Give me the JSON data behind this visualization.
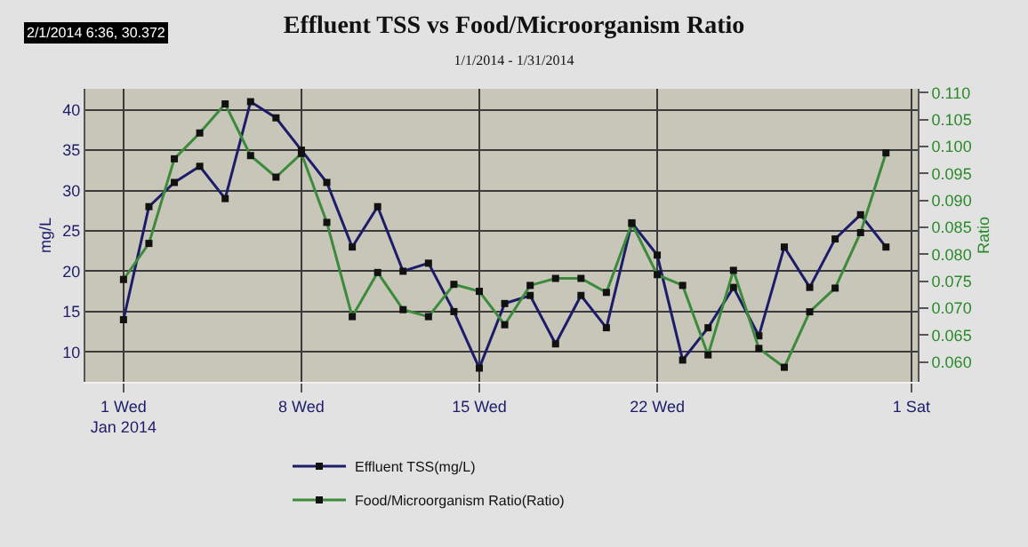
{
  "chart_data": {
    "type": "line",
    "title": "Effluent TSS vs Food/Microorganism Ratio",
    "subtitle": "1/1/2014 - 1/31/2014",
    "ylabel": "mg/L",
    "y2label": "Ratio",
    "annotations": [
      "2/1/2014 6:36, 30.372"
    ],
    "x": [
      "2014-01-01",
      "2014-01-02",
      "2014-01-03",
      "2014-01-04",
      "2014-01-05",
      "2014-01-06",
      "2014-01-07",
      "2014-01-08",
      "2014-01-09",
      "2014-01-10",
      "2014-01-11",
      "2014-01-12",
      "2014-01-13",
      "2014-01-14",
      "2014-01-15",
      "2014-01-16",
      "2014-01-17",
      "2014-01-18",
      "2014-01-19",
      "2014-01-20",
      "2014-01-21",
      "2014-01-22",
      "2014-01-23",
      "2014-01-24",
      "2014-01-25",
      "2014-01-26",
      "2014-01-27",
      "2014-01-28",
      "2014-01-29",
      "2014-01-30",
      "2014-01-31"
    ],
    "series": [
      {
        "name": "Effluent TSS(mg/L)",
        "color": "#1c1c6b",
        "values": [
          14,
          28,
          31,
          33,
          29,
          41,
          39,
          35,
          31,
          23,
          28,
          20,
          21,
          15,
          8,
          16,
          17,
          11,
          17,
          13,
          26,
          22,
          9,
          13,
          18,
          12,
          23,
          18,
          24,
          27,
          23
        ]
      },
      {
        "name": "Food/Microorganism Ratio(Ratio)",
        "color": "#3c8a3c",
        "axis": "y2",
        "values": [
          0.0753,
          0.082,
          0.0977,
          0.1025,
          0.1079,
          0.0983,
          0.0943,
          0.0987,
          0.0859,
          0.0684,
          0.0766,
          0.0697,
          0.0684,
          0.0744,
          0.0731,
          0.0669,
          0.0742,
          0.0755,
          0.0755,
          0.0729,
          0.0857,
          0.0762,
          0.0742,
          0.0613,
          0.077,
          0.0625,
          0.059,
          0.0693,
          0.0737,
          0.084,
          0.0988
        ]
      }
    ],
    "xlim": [
      "2013-12-30T12:00",
      "2014-02-01T06:00"
    ],
    "xticks": [
      {
        "value": "2014-01-01",
        "label": "1 Wed\nJan 2014"
      },
      {
        "value": "2014-01-08",
        "label": "8 Wed"
      },
      {
        "value": "2014-01-15",
        "label": "15 Wed"
      },
      {
        "value": "2014-01-22",
        "label": "22 Wed"
      },
      {
        "value": "2014-02-01",
        "label": "1 Sat"
      }
    ],
    "ylim": [
      6.3,
      42.6
    ],
    "yticks": [
      10,
      15,
      20,
      25,
      30,
      35,
      40
    ],
    "y2lim": [
      0.0563,
      0.1107
    ],
    "y2ticks": [
      {
        "value": 0.06,
        "label": "0.060"
      },
      {
        "value": 0.065,
        "label": "0.065"
      },
      {
        "value": 0.07,
        "label": "0.070"
      },
      {
        "value": 0.075,
        "label": "0.075"
      },
      {
        "value": 0.08,
        "label": "0.080"
      },
      {
        "value": 0.085,
        "label": "0.085"
      },
      {
        "value": 0.09,
        "label": "0.090"
      },
      {
        "value": 0.095,
        "label": "0.095"
      },
      {
        "value": 0.1,
        "label": "0.100"
      },
      {
        "value": 0.105,
        "label": "0.105"
      },
      {
        "value": 0.11,
        "label": "0.110"
      }
    ],
    "grid": true,
    "legend": "bottom",
    "marker": "square",
    "line_style": "solid"
  }
}
